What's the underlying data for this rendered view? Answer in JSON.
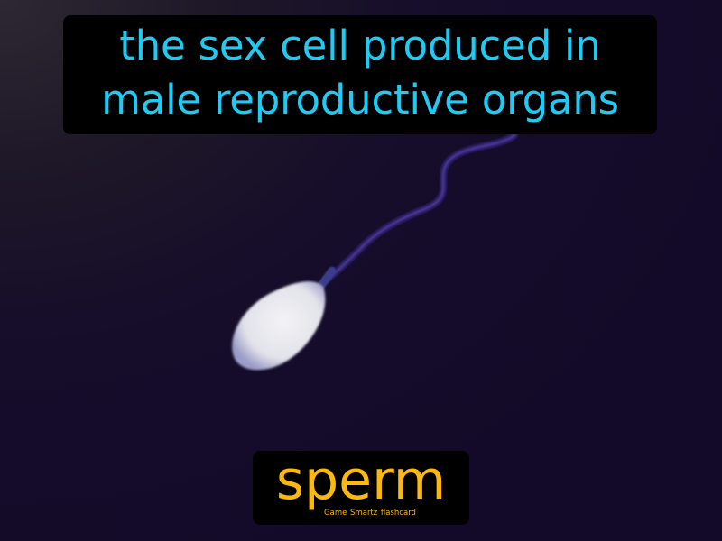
{
  "definition": {
    "line1": "the sex cell produced in",
    "line2": "male reproductive organs"
  },
  "term": {
    "word": "sperm"
  },
  "brand": {
    "text": "Game Smartz flashcard"
  },
  "illustration": {
    "subject": "sperm-cell-illustration"
  },
  "colors": {
    "definition_text": "#1ecbf4",
    "term_text": "#fbb80f",
    "background": "#140b2a",
    "box": "#000000"
  }
}
